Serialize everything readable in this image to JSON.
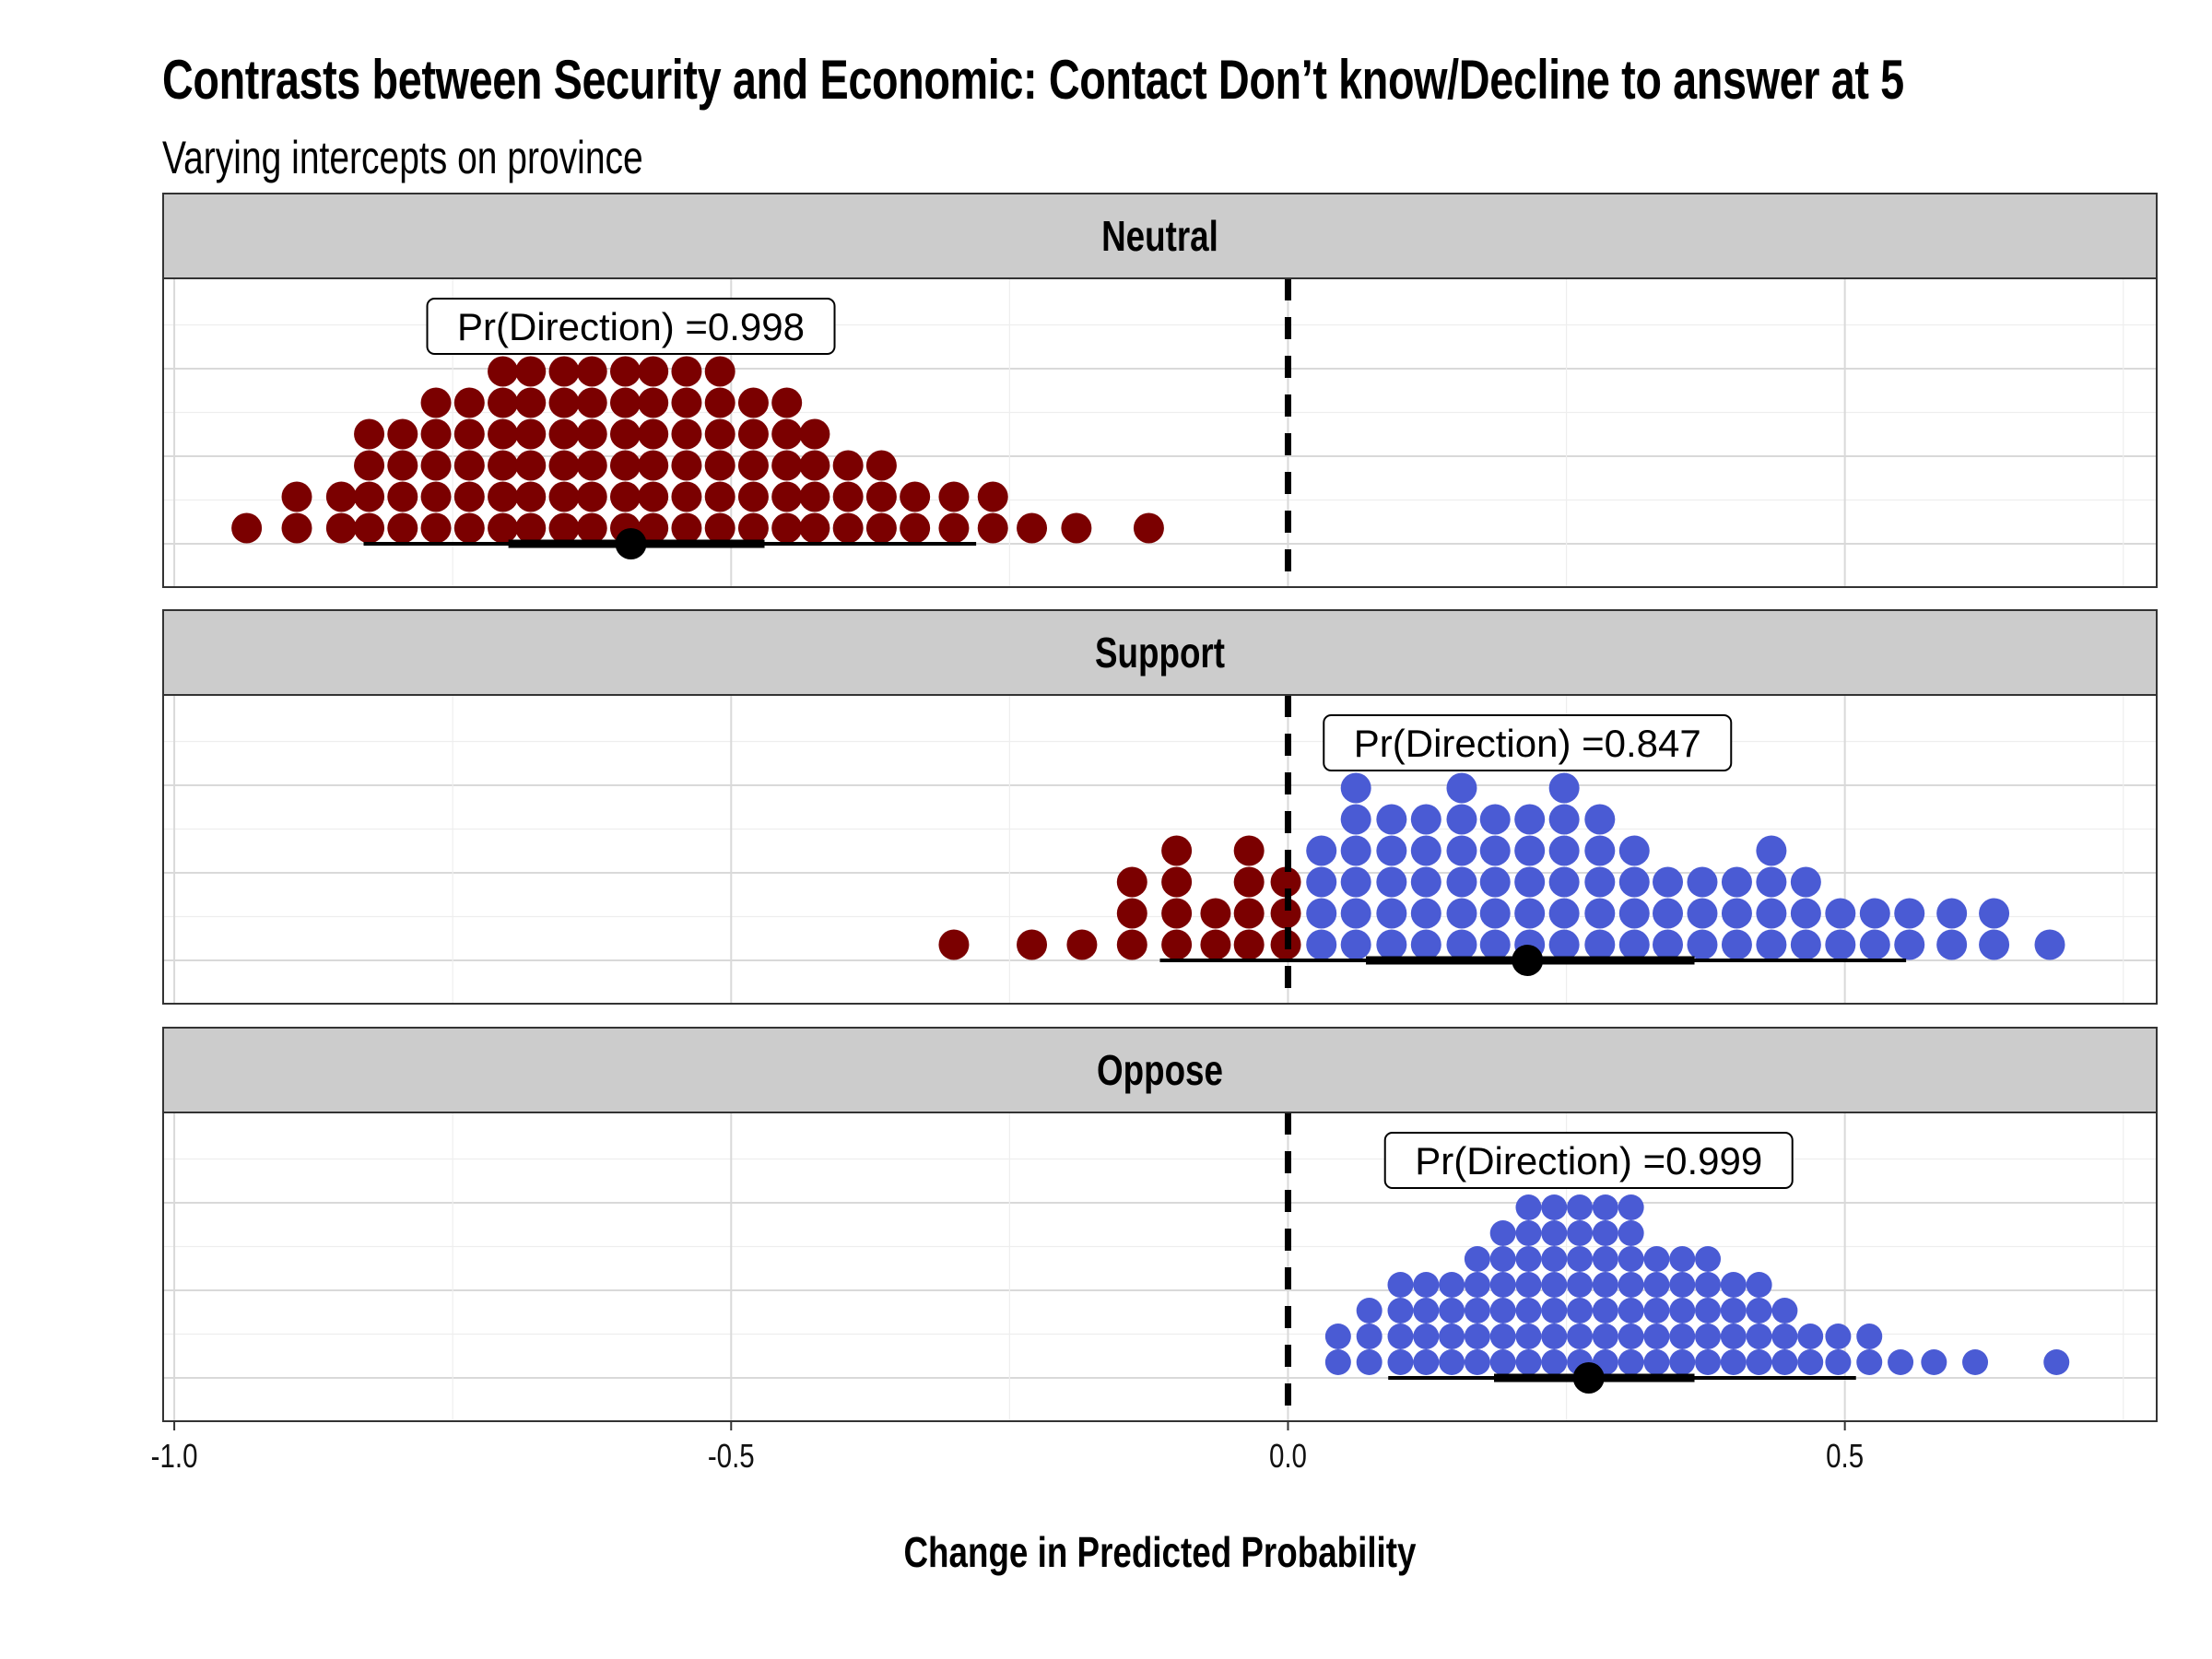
{
  "title": "Contrasts between Security and Economic: Contact Don’t know/Decline to answer at 5",
  "subtitle": "Varying intercepts on province",
  "colors": {
    "negative": "#7B0000",
    "positive": "#4A5BD4",
    "strip": "#CCCCCC",
    "grid": "#D9D9D9",
    "text": "#000000"
  },
  "chart_data": {
    "type": "dotplot",
    "xlabel": "Change in Predicted Probability",
    "xlim": [
      -1.01,
      0.78
    ],
    "xticks": [
      {
        "value": -1.0,
        "label": "-1.0"
      },
      {
        "value": -0.5,
        "label": "-0.5"
      },
      {
        "value": 0.0,
        "label": "0.0"
      },
      {
        "value": 0.5,
        "label": "0.5"
      }
    ],
    "reference_line": 0.0,
    "grid": true,
    "panels": [
      {
        "label": "Neutral",
        "annotation": "Pr(Direction) =0.998",
        "annotation_x": -0.59,
        "point_estimate": -0.59,
        "interval_inner": [
          -0.7,
          -0.47
        ],
        "interval_outer": [
          -0.83,
          -0.28
        ],
        "dot_step": 0.0278,
        "dot_columns": [
          {
            "x": -0.935,
            "n": 1
          },
          {
            "x": -0.89,
            "n": 2
          },
          {
            "x": -0.85,
            "n": 2
          },
          {
            "x": -0.825,
            "n": 4
          },
          {
            "x": -0.795,
            "n": 4
          },
          {
            "x": -0.765,
            "n": 5
          },
          {
            "x": -0.735,
            "n": 5
          },
          {
            "x": -0.705,
            "n": 6
          },
          {
            "x": -0.68,
            "n": 6
          },
          {
            "x": -0.65,
            "n": 6
          },
          {
            "x": -0.625,
            "n": 6
          },
          {
            "x": -0.595,
            "n": 6
          },
          {
            "x": -0.57,
            "n": 6
          },
          {
            "x": -0.54,
            "n": 6
          },
          {
            "x": -0.51,
            "n": 6
          },
          {
            "x": -0.48,
            "n": 5
          },
          {
            "x": -0.45,
            "n": 5
          },
          {
            "x": -0.425,
            "n": 4
          },
          {
            "x": -0.395,
            "n": 3
          },
          {
            "x": -0.365,
            "n": 3
          },
          {
            "x": -0.335,
            "n": 2
          },
          {
            "x": -0.3,
            "n": 2
          },
          {
            "x": -0.265,
            "n": 2
          },
          {
            "x": -0.23,
            "n": 1
          },
          {
            "x": -0.19,
            "n": 1
          },
          {
            "x": -0.125,
            "n": 1
          }
        ]
      },
      {
        "label": "Support",
        "annotation": "Pr(Direction) =0.847",
        "annotation_x": 0.215,
        "point_estimate": 0.215,
        "interval_inner": [
          0.07,
          0.365
        ],
        "interval_outer": [
          -0.115,
          0.555
        ],
        "dot_step": 0.0278,
        "dot_columns": [
          {
            "x": -0.3,
            "n": 1
          },
          {
            "x": -0.23,
            "n": 1
          },
          {
            "x": -0.185,
            "n": 1
          },
          {
            "x": -0.14,
            "n": 3
          },
          {
            "x": -0.1,
            "n": 4
          },
          {
            "x": -0.065,
            "n": 2
          },
          {
            "x": -0.035,
            "n": 4
          },
          {
            "x": -0.002,
            "n": 3
          },
          {
            "x": 0.03,
            "n": 4
          },
          {
            "x": 0.061,
            "n": 6
          },
          {
            "x": 0.093,
            "n": 5
          },
          {
            "x": 0.124,
            "n": 5
          },
          {
            "x": 0.156,
            "n": 6
          },
          {
            "x": 0.186,
            "n": 5
          },
          {
            "x": 0.217,
            "n": 5
          },
          {
            "x": 0.248,
            "n": 6
          },
          {
            "x": 0.28,
            "n": 5
          },
          {
            "x": 0.311,
            "n": 4
          },
          {
            "x": 0.341,
            "n": 3
          },
          {
            "x": 0.372,
            "n": 3
          },
          {
            "x": 0.403,
            "n": 3
          },
          {
            "x": 0.434,
            "n": 4
          },
          {
            "x": 0.465,
            "n": 3
          },
          {
            "x": 0.496,
            "n": 2
          },
          {
            "x": 0.527,
            "n": 2
          },
          {
            "x": 0.558,
            "n": 2
          },
          {
            "x": 0.596,
            "n": 2
          },
          {
            "x": 0.634,
            "n": 2
          },
          {
            "x": 0.684,
            "n": 1
          }
        ]
      },
      {
        "label": "Oppose",
        "annotation": "Pr(Direction) =0.999",
        "annotation_x": 0.27,
        "point_estimate": 0.27,
        "interval_inner": [
          0.185,
          0.365
        ],
        "interval_outer": [
          0.09,
          0.51
        ],
        "dot_step": 0.0222,
        "dot_columns": [
          {
            "x": 0.045,
            "n": 2
          },
          {
            "x": 0.073,
            "n": 3
          },
          {
            "x": 0.101,
            "n": 4
          },
          {
            "x": 0.124,
            "n": 4
          },
          {
            "x": 0.147,
            "n": 4
          },
          {
            "x": 0.17,
            "n": 5
          },
          {
            "x": 0.193,
            "n": 6
          },
          {
            "x": 0.216,
            "n": 7
          },
          {
            "x": 0.239,
            "n": 7
          },
          {
            "x": 0.262,
            "n": 7
          },
          {
            "x": 0.285,
            "n": 7
          },
          {
            "x": 0.308,
            "n": 7
          },
          {
            "x": 0.331,
            "n": 5
          },
          {
            "x": 0.354,
            "n": 5
          },
          {
            "x": 0.377,
            "n": 5
          },
          {
            "x": 0.4,
            "n": 4
          },
          {
            "x": 0.423,
            "n": 4
          },
          {
            "x": 0.446,
            "n": 3
          },
          {
            "x": 0.469,
            "n": 2
          },
          {
            "x": 0.494,
            "n": 2
          },
          {
            "x": 0.522,
            "n": 2
          },
          {
            "x": 0.55,
            "n": 1
          },
          {
            "x": 0.58,
            "n": 1
          },
          {
            "x": 0.617,
            "n": 1
          },
          {
            "x": 0.69,
            "n": 1
          }
        ]
      }
    ]
  }
}
